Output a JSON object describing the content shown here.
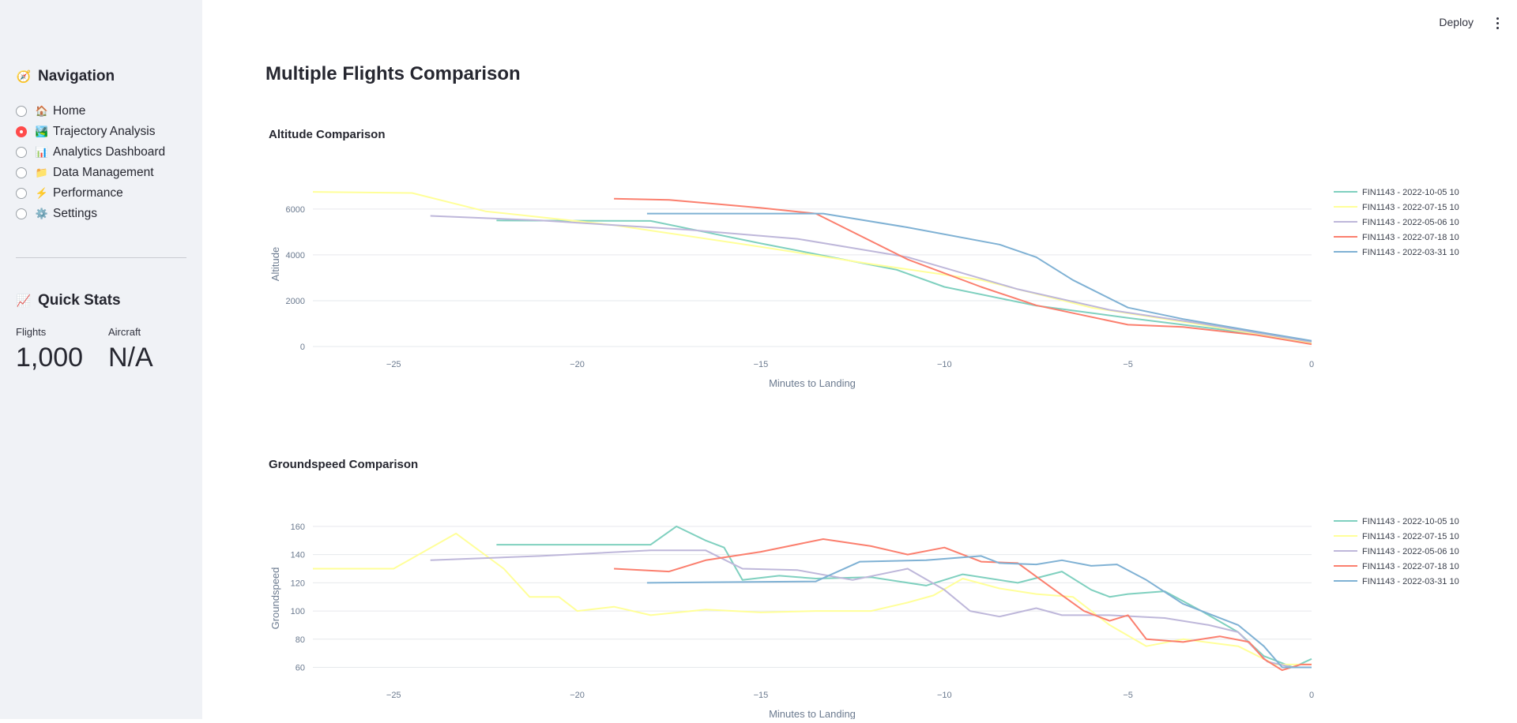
{
  "sidebar": {
    "navigation_title": "Navigation",
    "navigation_emoji": "🧭",
    "items": [
      {
        "label": "Home",
        "emoji": "🏠",
        "selected": false
      },
      {
        "label": "Trajectory Analysis",
        "emoji": "🏞️",
        "selected": true
      },
      {
        "label": "Analytics Dashboard",
        "emoji": "📊",
        "selected": false
      },
      {
        "label": "Data Management",
        "emoji": "📁",
        "selected": false
      },
      {
        "label": "Performance",
        "emoji": "⚡",
        "selected": false
      },
      {
        "label": "Settings",
        "emoji": "⚙️",
        "selected": false
      }
    ],
    "quick_stats_title": "Quick Stats",
    "quick_stats_emoji": "📈",
    "stats": [
      {
        "label": "Flights",
        "value": "1,000"
      },
      {
        "label": "Aircraft",
        "value": "N/A"
      }
    ]
  },
  "header": {
    "deploy_label": "Deploy"
  },
  "page_title": "Multiple Flights Comparison",
  "chart_data": [
    {
      "type": "line",
      "title": "Altitude Comparison",
      "xlabel": "Minutes to Landing",
      "ylabel": "Altitude",
      "xlim": [
        -27.2,
        0
      ],
      "ylim": [
        0,
        7200
      ],
      "xticks": [
        -25,
        -20,
        -15,
        -10,
        -5,
        0
      ],
      "yticks": [
        0,
        2000,
        4000,
        6000
      ],
      "grid": "horizontal",
      "legend": "right",
      "series": [
        {
          "name": "FIN1143 - 2022-10-05 10",
          "color": "#7fd0bf",
          "points": [
            [
              -22.2,
              5500
            ],
            [
              -18,
              5480
            ],
            [
              -15,
              4500
            ],
            [
              -11.3,
              3350
            ],
            [
              -10,
              2600
            ],
            [
              -7.5,
              1780
            ],
            [
              -5,
              1250
            ],
            [
              -2.5,
              750
            ],
            [
              0,
              200
            ]
          ]
        },
        {
          "name": "FIN1143 - 2022-07-15 10",
          "color": "#ffff99",
          "points": [
            [
              -27.2,
              6750
            ],
            [
              -24.5,
              6700
            ],
            [
              -22.5,
              5900
            ],
            [
              -19,
              5300
            ],
            [
              -15,
              4350
            ],
            [
              -12,
              3600
            ],
            [
              -9,
              2900
            ],
            [
              -6,
              1700
            ],
            [
              -3,
              950
            ],
            [
              0,
              150
            ]
          ]
        },
        {
          "name": "FIN1143 - 2022-05-06 10",
          "color": "#beb7da",
          "points": [
            [
              -24,
              5700
            ],
            [
              -21,
              5500
            ],
            [
              -17,
              5100
            ],
            [
              -14,
              4700
            ],
            [
              -11,
              3900
            ],
            [
              -8,
              2500
            ],
            [
              -5.5,
              1600
            ],
            [
              -3,
              1000
            ],
            [
              0,
              200
            ]
          ]
        },
        {
          "name": "FIN1143 - 2022-07-18 10",
          "color": "#fb7f6e",
          "points": [
            [
              -19,
              6450
            ],
            [
              -17.5,
              6400
            ],
            [
              -15,
              6050
            ],
            [
              -13.5,
              5800
            ],
            [
              -11,
              3800
            ],
            [
              -9,
              2600
            ],
            [
              -7.5,
              1800
            ],
            [
              -5,
              950
            ],
            [
              -3.5,
              850
            ],
            [
              -1.5,
              500
            ],
            [
              0,
              100
            ]
          ]
        },
        {
          "name": "FIN1143 - 2022-03-31 10",
          "color": "#7fb1d4",
          "points": [
            [
              -18.1,
              5800
            ],
            [
              -13.3,
              5800
            ],
            [
              -11,
              5200
            ],
            [
              -8.5,
              4450
            ],
            [
              -7.5,
              3900
            ],
            [
              -6.5,
              2900
            ],
            [
              -5,
              1700
            ],
            [
              -3.5,
              1200
            ],
            [
              -1.5,
              650
            ],
            [
              0,
              250
            ]
          ]
        }
      ]
    },
    {
      "type": "line",
      "title": "Groundspeed Comparison",
      "xlabel": "Minutes to Landing",
      "ylabel": "Groundspeed",
      "xlim": [
        -27.2,
        0
      ],
      "ylim": [
        53,
        165
      ],
      "xticks": [
        -25,
        -20,
        -15,
        -10,
        -5,
        0
      ],
      "yticks": [
        60,
        80,
        100,
        120,
        140,
        160
      ],
      "grid": "horizontal",
      "legend": "right",
      "series": [
        {
          "name": "FIN1143 - 2022-10-05 10",
          "color": "#7fd0bf",
          "points": [
            [
              -22.2,
              147
            ],
            [
              -18,
              147
            ],
            [
              -17.3,
              160
            ],
            [
              -16.5,
              150
            ],
            [
              -16,
              145
            ],
            [
              -15.5,
              122
            ],
            [
              -14.5,
              125
            ],
            [
              -13.5,
              123
            ],
            [
              -12,
              124
            ],
            [
              -10.5,
              118
            ],
            [
              -9.5,
              126
            ],
            [
              -8,
              120
            ],
            [
              -6.8,
              128
            ],
            [
              -6,
              115
            ],
            [
              -5.5,
              110
            ],
            [
              -5,
              112
            ],
            [
              -4,
              114
            ],
            [
              -3,
              100
            ],
            [
              -2,
              85
            ],
            [
              -1.3,
              68
            ],
            [
              -0.5,
              60
            ],
            [
              0,
              66
            ]
          ]
        },
        {
          "name": "FIN1143 - 2022-07-15 10",
          "color": "#ffff99",
          "points": [
            [
              -27.2,
              130
            ],
            [
              -25,
              130
            ],
            [
              -23.3,
              155
            ],
            [
              -22,
              130
            ],
            [
              -21.3,
              110
            ],
            [
              -20.5,
              110
            ],
            [
              -20,
              100
            ],
            [
              -19,
              103
            ],
            [
              -18,
              97
            ],
            [
              -16.5,
              101
            ],
            [
              -15,
              99
            ],
            [
              -13.5,
              100
            ],
            [
              -12,
              100
            ],
            [
              -11,
              106
            ],
            [
              -10.3,
              111
            ],
            [
              -9.5,
              123
            ],
            [
              -8.5,
              116
            ],
            [
              -7.5,
              112
            ],
            [
              -6.5,
              110
            ],
            [
              -5.5,
              90
            ],
            [
              -4.5,
              75
            ],
            [
              -3.5,
              80
            ],
            [
              -2,
              75
            ],
            [
              -1,
              62
            ],
            [
              0,
              62
            ]
          ]
        },
        {
          "name": "FIN1143 - 2022-05-06 10",
          "color": "#beb7da",
          "points": [
            [
              -24,
              136
            ],
            [
              -21,
              139
            ],
            [
              -18,
              143
            ],
            [
              -16.5,
              143
            ],
            [
              -15.5,
              130
            ],
            [
              -14,
              129
            ],
            [
              -12.5,
              122
            ],
            [
              -11,
              130
            ],
            [
              -10,
              115
            ],
            [
              -9.3,
              100
            ],
            [
              -8.5,
              96
            ],
            [
              -7.5,
              102
            ],
            [
              -6.8,
              97
            ],
            [
              -5.5,
              97
            ],
            [
              -4,
              95
            ],
            [
              -2.8,
              90
            ],
            [
              -2,
              85
            ],
            [
              -1.2,
              64
            ],
            [
              -0.5,
              60
            ],
            [
              0,
              60
            ]
          ]
        },
        {
          "name": "FIN1143 - 2022-07-18 10",
          "color": "#fb7f6e",
          "points": [
            [
              -19,
              130
            ],
            [
              -17.5,
              128
            ],
            [
              -16.5,
              136
            ],
            [
              -15,
              142
            ],
            [
              -13.3,
              151
            ],
            [
              -12,
              146
            ],
            [
              -11,
              140
            ],
            [
              -10,
              145
            ],
            [
              -9,
              135
            ],
            [
              -8,
              134
            ],
            [
              -7,
              115
            ],
            [
              -6.2,
              100
            ],
            [
              -5.5,
              93
            ],
            [
              -5,
              97
            ],
            [
              -4.5,
              80
            ],
            [
              -3.5,
              78
            ],
            [
              -2.5,
              82
            ],
            [
              -1.7,
              78
            ],
            [
              -1.3,
              66
            ],
            [
              -0.8,
              58
            ],
            [
              -0.3,
              62
            ],
            [
              0,
              62
            ]
          ]
        },
        {
          "name": "FIN1143 - 2022-03-31 10",
          "color": "#7fb1d4",
          "points": [
            [
              -18.1,
              120
            ],
            [
              -13.5,
              121
            ],
            [
              -12.3,
              135
            ],
            [
              -10.5,
              136
            ],
            [
              -9,
              139
            ],
            [
              -8.5,
              134
            ],
            [
              -7.5,
              133
            ],
            [
              -6.8,
              136
            ],
            [
              -6,
              132
            ],
            [
              -5.3,
              133
            ],
            [
              -4.5,
              122
            ],
            [
              -3.5,
              105
            ],
            [
              -2.8,
              98
            ],
            [
              -2,
              90
            ],
            [
              -1.3,
              75
            ],
            [
              -0.8,
              60
            ],
            [
              0,
              60
            ]
          ]
        }
      ]
    }
  ]
}
